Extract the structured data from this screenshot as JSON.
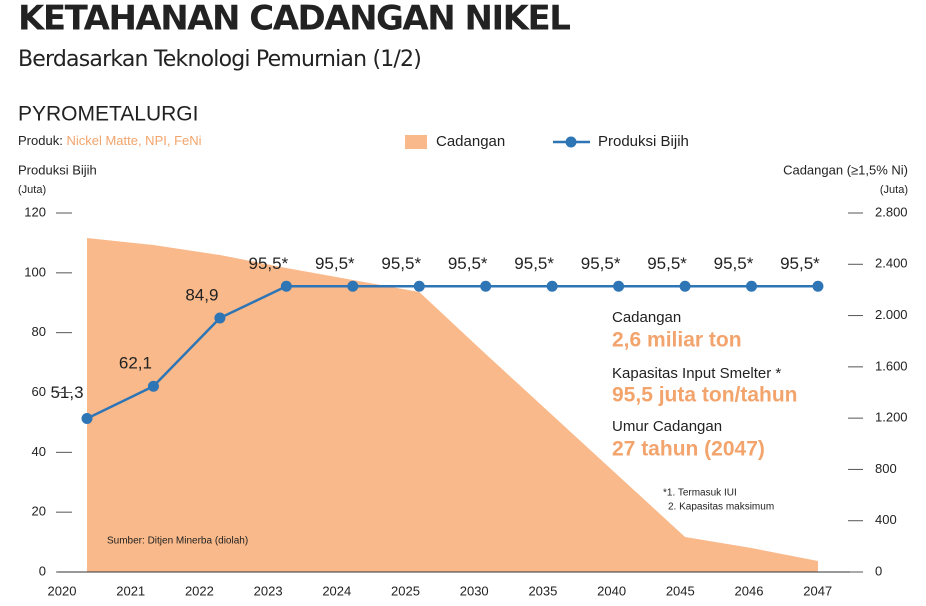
{
  "chart_data": {
    "type": "line",
    "title": "KETAHANAN CADANGAN NIKEL",
    "subtitle": "Berdasarkan Teknologi Pemurnian (1/2)",
    "section": "PYROMETALURGI",
    "product_label": "Produk:",
    "product_value": "Nickel Matte, NPI, FeNi",
    "y_label": "Produksi Bijih",
    "y_unit": "(Juta)",
    "y2_label": "Cadangan (≥1,5% Ni)",
    "y2_unit": "(Juta)",
    "categories": [
      "2020",
      "2021",
      "2022",
      "2023",
      "2024",
      "2025",
      "2030",
      "2035",
      "2040",
      "2045",
      "2046",
      "2047"
    ],
    "series": [
      {
        "name": "Cadangan",
        "type": "area",
        "axis": "y2",
        "color": "#f9b98a",
        "values": [
          2605,
          2550,
          2472,
          2371,
          2277,
          2184,
          1700,
          1225,
          749,
          273,
          187,
          86
        ]
      },
      {
        "name": "Produksi Bijih",
        "type": "line",
        "color": "#2e75b6",
        "values": [
          51.3,
          62.1,
          84.9,
          95.5,
          95.5,
          95.5,
          95.5,
          95.5,
          95.5,
          95.5,
          95.5,
          95.5
        ],
        "value_labels": [
          "51,3",
          "62,1",
          "84,9",
          "95,5*",
          "95,5*",
          "95,5*",
          "95,5*",
          "95,5*",
          "95,5*",
          "95,5*",
          "95,5*",
          "95,5*"
        ]
      }
    ],
    "ylim": [
      0,
      120
    ],
    "yticks": [
      0,
      20,
      40,
      60,
      80,
      100,
      120
    ],
    "y2lim": [
      0,
      2800
    ],
    "y2ticks": [
      0,
      400,
      800,
      {
        "value": 1200,
        "label": "1.200"
      },
      {
        "value": 1600,
        "label": "1.600"
      },
      {
        "value": 2000,
        "label": "2.000"
      },
      {
        "value": 2400,
        "label": "2.400"
      },
      {
        "value": 2800,
        "label": "2.800"
      }
    ],
    "annotations": [
      "Cadangan",
      "2,6 miliar ton",
      "Kapasitas Input Smelter *",
      "95,5 juta ton/tahun",
      "Umur Cadangan",
      "27 tahun (2047)"
    ],
    "footnotes": [
      "*1. Termasuk IUI",
      "2. Kapasitas maksimum"
    ],
    "source": "Sumber: Ditjen Minerba (diolah)"
  }
}
